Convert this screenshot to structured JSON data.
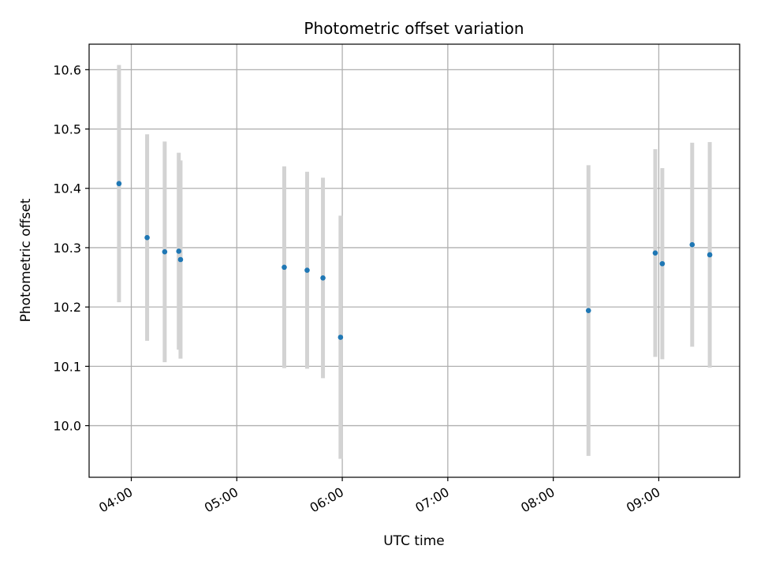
{
  "chart_data": {
    "type": "scatter",
    "title": "Photometric offset variation",
    "xlabel": "UTC time",
    "ylabel": "Photometric offset",
    "x_format": "HH:MM",
    "xlim": [
      "03:36",
      "09:46"
    ],
    "ylim": [
      9.913,
      10.643
    ],
    "x_ticks": [
      "04:00",
      "05:00",
      "06:00",
      "07:00",
      "08:00",
      "09:00"
    ],
    "y_ticks": [
      10.0,
      10.1,
      10.2,
      10.3,
      10.4,
      10.5,
      10.6
    ],
    "grid": true,
    "legend": "none",
    "colors": {
      "point": "#1f77b4",
      "errorbar": "#d3d3d3",
      "grid": "#b0b0b0",
      "frame": "#000000"
    },
    "points": [
      {
        "time": "03:53",
        "y": 10.408,
        "y_low": 10.208,
        "y_high": 10.608
      },
      {
        "time": "04:09",
        "y": 10.317,
        "y_low": 10.143,
        "y_high": 10.491
      },
      {
        "time": "04:19",
        "y": 10.293,
        "y_low": 10.107,
        "y_high": 10.479
      },
      {
        "time": "04:27",
        "y": 10.294,
        "y_low": 10.128,
        "y_high": 10.46
      },
      {
        "time": "04:28",
        "y": 10.28,
        "y_low": 10.113,
        "y_high": 10.447
      },
      {
        "time": "05:27",
        "y": 10.267,
        "y_low": 10.097,
        "y_high": 10.437
      },
      {
        "time": "05:40",
        "y": 10.262,
        "y_low": 10.096,
        "y_high": 10.428
      },
      {
        "time": "05:49",
        "y": 10.249,
        "y_low": 10.08,
        "y_high": 10.418
      },
      {
        "time": "05:59",
        "y": 10.149,
        "y_low": 9.944,
        "y_high": 10.354
      },
      {
        "time": "08:20",
        "y": 10.194,
        "y_low": 9.949,
        "y_high": 10.439
      },
      {
        "time": "08:58",
        "y": 10.291,
        "y_low": 10.116,
        "y_high": 10.466
      },
      {
        "time": "09:02",
        "y": 10.273,
        "y_low": 10.112,
        "y_high": 10.434
      },
      {
        "time": "09:19",
        "y": 10.305,
        "y_low": 10.133,
        "y_high": 10.477
      },
      {
        "time": "09:29",
        "y": 10.288,
        "y_low": 10.098,
        "y_high": 10.478
      }
    ]
  }
}
